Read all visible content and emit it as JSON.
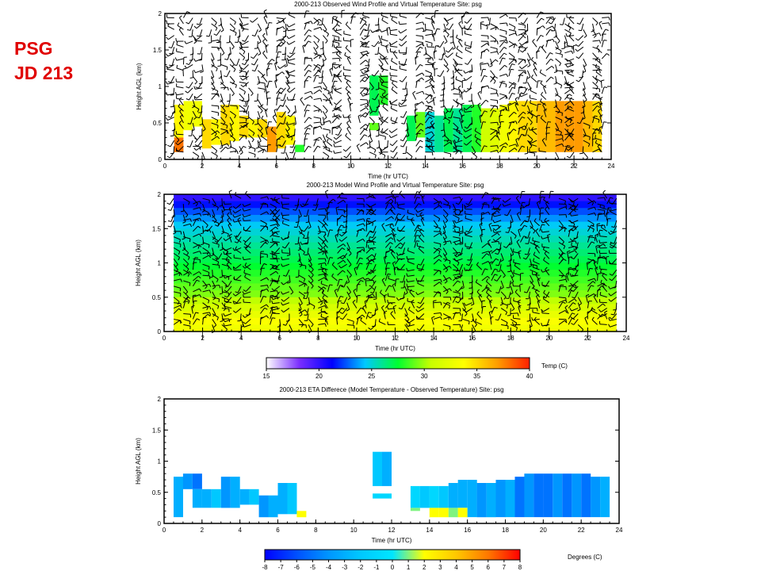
{
  "slide": {
    "title_line1": "PSG",
    "title_line2": "JD 213"
  },
  "colors": {
    "title": "#e00000",
    "frame": "#000000",
    "background": "#ffffff"
  },
  "chart_data": [
    {
      "type": "heatmap",
      "name": "observed",
      "title": "2000-213    Observed Wind Profile and Virtual Temperature    Site: psg",
      "xlabel": "Time (hr UTC)",
      "ylabel": "Height AGL (km)",
      "xlim": [
        0,
        24
      ],
      "ylim": [
        0,
        2
      ],
      "xticks": [
        0,
        2,
        4,
        6,
        8,
        10,
        12,
        14,
        16,
        18,
        20,
        22,
        24
      ],
      "yticks": [
        0,
        0.5,
        1,
        1.5,
        2
      ],
      "ytick_labels": [
        "0",
        "0.5",
        "1",
        "1.5",
        "2"
      ],
      "colorbar": "temperature",
      "wind_barbs": true,
      "cells": [
        {
          "t0": 0.5,
          "t1": 1.0,
          "h0": 0.1,
          "h1": 0.3,
          "v": 38
        },
        {
          "t0": 0.5,
          "t1": 1.0,
          "h0": 0.3,
          "h1": 0.75,
          "v": 34
        },
        {
          "t0": 1.0,
          "t1": 1.5,
          "h0": 0.4,
          "h1": 0.8,
          "v": 33
        },
        {
          "t0": 1.5,
          "t1": 2.0,
          "h0": 0.45,
          "h1": 0.8,
          "v": 33
        },
        {
          "t0": 2.0,
          "t1": 2.5,
          "h0": 0.15,
          "h1": 0.55,
          "v": 35
        },
        {
          "t0": 2.5,
          "t1": 3.0,
          "h0": 0.2,
          "h1": 0.55,
          "v": 34
        },
        {
          "t0": 3.0,
          "t1": 3.5,
          "h0": 0.2,
          "h1": 0.75,
          "v": 35
        },
        {
          "t0": 3.5,
          "t1": 4.0,
          "h0": 0.25,
          "h1": 0.75,
          "v": 34
        },
        {
          "t0": 4.0,
          "t1": 4.5,
          "h0": 0.3,
          "h1": 0.6,
          "v": 35
        },
        {
          "t0": 4.5,
          "t1": 5.0,
          "h0": 0.3,
          "h1": 0.55,
          "v": 34
        },
        {
          "t0": 5.0,
          "t1": 5.5,
          "h0": 0.3,
          "h1": 0.55,
          "v": 35
        },
        {
          "t0": 5.5,
          "t1": 6.0,
          "h0": 0.1,
          "h1": 0.45,
          "v": 37
        },
        {
          "t0": 6.0,
          "t1": 6.5,
          "h0": 0.15,
          "h1": 0.65,
          "v": 35
        },
        {
          "t0": 6.5,
          "t1": 7.0,
          "h0": 0.2,
          "h1": 0.6,
          "v": 34
        },
        {
          "t0": 7.0,
          "t1": 7.5,
          "h0": 0.1,
          "h1": 0.2,
          "v": 28
        },
        {
          "t0": 11.0,
          "t1": 11.5,
          "h0": 0.6,
          "h1": 1.15,
          "v": 27
        },
        {
          "t0": 11.5,
          "t1": 12.0,
          "h0": 0.75,
          "h1": 1.15,
          "v": 28
        },
        {
          "t0": 11.0,
          "t1": 11.5,
          "h0": 0.4,
          "h1": 0.5,
          "v": 29
        },
        {
          "t0": 13.0,
          "t1": 13.5,
          "h0": 0.25,
          "h1": 0.6,
          "v": 27
        },
        {
          "t0": 13.5,
          "t1": 14.0,
          "h0": 0.3,
          "h1": 0.65,
          "v": 29
        },
        {
          "t0": 14.0,
          "t1": 14.5,
          "h0": 0.1,
          "h1": 0.65,
          "v": 25
        },
        {
          "t0": 14.5,
          "t1": 15.0,
          "h0": 0.1,
          "h1": 0.6,
          "v": 26
        },
        {
          "t0": 15.0,
          "t1": 15.5,
          "h0": 0.1,
          "h1": 0.7,
          "v": 27
        },
        {
          "t0": 15.5,
          "t1": 16.0,
          "h0": 0.1,
          "h1": 0.7,
          "v": 26
        },
        {
          "t0": 16.0,
          "t1": 16.5,
          "h0": 0.1,
          "h1": 0.75,
          "v": 27
        },
        {
          "t0": 16.5,
          "t1": 17.0,
          "h0": 0.1,
          "h1": 0.75,
          "v": 28
        },
        {
          "t0": 17.0,
          "t1": 17.5,
          "h0": 0.1,
          "h1": 0.7,
          "v": 31
        },
        {
          "t0": 17.5,
          "t1": 18.0,
          "h0": 0.1,
          "h1": 0.7,
          "v": 32
        },
        {
          "t0": 18.0,
          "t1": 18.5,
          "h0": 0.1,
          "h1": 0.75,
          "v": 33
        },
        {
          "t0": 18.5,
          "t1": 19.0,
          "h0": 0.1,
          "h1": 0.8,
          "v": 34
        },
        {
          "t0": 19.0,
          "t1": 19.5,
          "h0": 0.1,
          "h1": 0.8,
          "v": 35
        },
        {
          "t0": 19.5,
          "t1": 20.0,
          "h0": 0.1,
          "h1": 0.8,
          "v": 35
        },
        {
          "t0": 20.0,
          "t1": 20.5,
          "h0": 0.1,
          "h1": 0.8,
          "v": 36
        },
        {
          "t0": 20.5,
          "t1": 21.0,
          "h0": 0.1,
          "h1": 0.8,
          "v": 36
        },
        {
          "t0": 21.0,
          "t1": 21.5,
          "h0": 0.1,
          "h1": 0.8,
          "v": 37
        },
        {
          "t0": 21.5,
          "t1": 22.0,
          "h0": 0.1,
          "h1": 0.8,
          "v": 37
        },
        {
          "t0": 22.0,
          "t1": 22.5,
          "h0": 0.1,
          "h1": 0.8,
          "v": 37
        },
        {
          "t0": 22.5,
          "t1": 23.0,
          "h0": 0.1,
          "h1": 0.8,
          "v": 36
        },
        {
          "t0": 23.0,
          "t1": 23.5,
          "h0": 0.1,
          "h1": 0.8,
          "v": 35
        }
      ]
    },
    {
      "type": "heatmap",
      "name": "model",
      "title": "2000-213    Model Wind Profile and Virtual Temperature    Site: psg",
      "xlabel": "Time (hr UTC)",
      "ylabel": "Height AGL (km)",
      "xlim": [
        0,
        24
      ],
      "ylim": [
        0,
        2
      ],
      "xticks": [
        0,
        2,
        4,
        6,
        8,
        10,
        12,
        14,
        16,
        18,
        20,
        22,
        24
      ],
      "yticks": [
        0,
        0.5,
        1,
        1.5,
        2
      ],
      "ytick_labels": [
        "0",
        "0.5",
        "1",
        "1.5",
        "2"
      ],
      "colorbar": "temperature",
      "wind_barbs": true,
      "field": {
        "t0": 0.5,
        "t1": 23.5,
        "levels_km": [
          2.0,
          1.9,
          1.8,
          1.7,
          1.6,
          1.5,
          1.4,
          1.3,
          1.2,
          1.1,
          1.0,
          0.9,
          0.8,
          0.7,
          0.6,
          0.5,
          0.4,
          0.3,
          0.2,
          0.1,
          0.0
        ],
        "temps_c": [
          20,
          21.5,
          22.5,
          23.5,
          24.5,
          25,
          25.5,
          26,
          26.5,
          27,
          27.5,
          28,
          28.5,
          29,
          29.5,
          30.5,
          31.5,
          32.5,
          33.5,
          33
        ]
      }
    },
    {
      "type": "colorbar",
      "name": "temperature-scale",
      "label": "Temp (C)",
      "range": [
        15,
        40
      ],
      "ticks": [
        15,
        20,
        25,
        30,
        35,
        40
      ],
      "stops": [
        "#ffffff",
        "#7b2fff",
        "#0000ff",
        "#00c8ff",
        "#00ff30",
        "#c8ff00",
        "#ffff00",
        "#ffa000",
        "#ff2000"
      ]
    },
    {
      "type": "heatmap",
      "name": "difference",
      "title": "2000-213    ETA    Differece (Model Temperature - Observed Temperature)    Site: psg",
      "xlabel": "Time (hr UTC)",
      "ylabel": "Height AGL (km)",
      "xlim": [
        0,
        24
      ],
      "ylim": [
        0,
        2
      ],
      "xticks": [
        0,
        2,
        4,
        6,
        8,
        10,
        12,
        14,
        16,
        18,
        20,
        22,
        24
      ],
      "yticks": [
        0,
        0.5,
        1,
        1.5,
        2
      ],
      "ytick_labels": [
        "0",
        "0.5",
        "1",
        "1.5",
        "2"
      ],
      "colorbar": "difference",
      "wind_barbs": false,
      "cells": [
        {
          "t0": 0.5,
          "t1": 1.0,
          "h0": 0.1,
          "h1": 0.75,
          "v": -3
        },
        {
          "t0": 1.0,
          "t1": 1.5,
          "h0": 0.55,
          "h1": 0.8,
          "v": -4
        },
        {
          "t0": 1.5,
          "t1": 2.0,
          "h0": 0.55,
          "h1": 0.8,
          "v": -5
        },
        {
          "t0": 1.5,
          "t1": 2.0,
          "h0": 0.25,
          "h1": 0.55,
          "v": -3
        },
        {
          "t0": 2.0,
          "t1": 2.5,
          "h0": 0.25,
          "h1": 0.55,
          "v": -3
        },
        {
          "t0": 2.5,
          "t1": 3.0,
          "h0": 0.25,
          "h1": 0.55,
          "v": -2
        },
        {
          "t0": 3.0,
          "t1": 3.5,
          "h0": 0.25,
          "h1": 0.75,
          "v": -4
        },
        {
          "t0": 3.5,
          "t1": 4.0,
          "h0": 0.25,
          "h1": 0.75,
          "v": -3
        },
        {
          "t0": 4.0,
          "t1": 4.5,
          "h0": 0.3,
          "h1": 0.55,
          "v": -3
        },
        {
          "t0": 4.5,
          "t1": 5.0,
          "h0": 0.3,
          "h1": 0.55,
          "v": -2
        },
        {
          "t0": 5.0,
          "t1": 5.5,
          "h0": 0.1,
          "h1": 0.45,
          "v": -4
        },
        {
          "t0": 5.5,
          "t1": 6.0,
          "h0": 0.1,
          "h1": 0.45,
          "v": -3
        },
        {
          "t0": 6.0,
          "t1": 6.5,
          "h0": 0.15,
          "h1": 0.65,
          "v": -3
        },
        {
          "t0": 6.5,
          "t1": 7.0,
          "h0": 0.15,
          "h1": 0.65,
          "v": -2
        },
        {
          "t0": 7.0,
          "t1": 7.5,
          "h0": 0.1,
          "h1": 0.2,
          "v": 2
        },
        {
          "t0": 11.0,
          "t1": 11.5,
          "h0": 0.6,
          "h1": 1.15,
          "v": -2
        },
        {
          "t0": 11.5,
          "t1": 12.0,
          "h0": 0.6,
          "h1": 1.15,
          "v": -3
        },
        {
          "t0": 11.0,
          "t1": 12.0,
          "h0": 0.4,
          "h1": 0.48,
          "v": -1
        },
        {
          "t0": 13.0,
          "t1": 13.5,
          "h0": 0.25,
          "h1": 0.6,
          "v": -1
        },
        {
          "t0": 13.0,
          "t1": 13.5,
          "h0": 0.2,
          "h1": 0.25,
          "v": 1
        },
        {
          "t0": 13.5,
          "t1": 14.0,
          "h0": 0.25,
          "h1": 0.6,
          "v": -2
        },
        {
          "t0": 14.0,
          "t1": 14.5,
          "h0": 0.25,
          "h1": 0.6,
          "v": -1
        },
        {
          "t0": 14.0,
          "t1": 14.5,
          "h0": 0.1,
          "h1": 0.25,
          "v": 2
        },
        {
          "t0": 14.5,
          "t1": 15.0,
          "h0": 0.25,
          "h1": 0.6,
          "v": -2
        },
        {
          "t0": 14.5,
          "t1": 15.0,
          "h0": 0.1,
          "h1": 0.25,
          "v": 2
        },
        {
          "t0": 15.0,
          "t1": 15.5,
          "h0": 0.25,
          "h1": 0.65,
          "v": -3
        },
        {
          "t0": 15.0,
          "t1": 15.5,
          "h0": 0.1,
          "h1": 0.25,
          "v": 1
        },
        {
          "t0": 15.5,
          "t1": 16.0,
          "h0": 0.25,
          "h1": 0.7,
          "v": -3
        },
        {
          "t0": 15.5,
          "t1": 16.0,
          "h0": 0.1,
          "h1": 0.25,
          "v": 2
        },
        {
          "t0": 16.0,
          "t1": 16.5,
          "h0": 0.1,
          "h1": 0.7,
          "v": -3
        },
        {
          "t0": 16.5,
          "t1": 17.0,
          "h0": 0.1,
          "h1": 0.65,
          "v": -4
        },
        {
          "t0": 17.0,
          "t1": 17.5,
          "h0": 0.1,
          "h1": 0.65,
          "v": -3
        },
        {
          "t0": 17.5,
          "t1": 18.0,
          "h0": 0.1,
          "h1": 0.7,
          "v": -4
        },
        {
          "t0": 18.0,
          "t1": 18.5,
          "h0": 0.1,
          "h1": 0.7,
          "v": -3
        },
        {
          "t0": 18.5,
          "t1": 19.0,
          "h0": 0.1,
          "h1": 0.75,
          "v": -5
        },
        {
          "t0": 19.0,
          "t1": 19.5,
          "h0": 0.1,
          "h1": 0.8,
          "v": -4
        },
        {
          "t0": 19.5,
          "t1": 20.0,
          "h0": 0.1,
          "h1": 0.8,
          "v": -5
        },
        {
          "t0": 20.0,
          "t1": 20.5,
          "h0": 0.1,
          "h1": 0.8,
          "v": -5
        },
        {
          "t0": 20.5,
          "t1": 21.0,
          "h0": 0.1,
          "h1": 0.8,
          "v": -4
        },
        {
          "t0": 21.0,
          "t1": 21.5,
          "h0": 0.1,
          "h1": 0.8,
          "v": -5
        },
        {
          "t0": 21.5,
          "t1": 22.0,
          "h0": 0.1,
          "h1": 0.8,
          "v": -4
        },
        {
          "t0": 22.0,
          "t1": 22.5,
          "h0": 0.1,
          "h1": 0.8,
          "v": -5
        },
        {
          "t0": 22.5,
          "t1": 23.0,
          "h0": 0.1,
          "h1": 0.75,
          "v": -4
        },
        {
          "t0": 23.0,
          "t1": 23.5,
          "h0": 0.1,
          "h1": 0.75,
          "v": -3
        }
      ]
    },
    {
      "type": "colorbar",
      "name": "difference-scale",
      "label": "Degrees (C)",
      "range": [
        -8,
        8
      ],
      "ticks": [
        -8,
        -7,
        -6,
        -5,
        -4,
        -3,
        -2,
        -1,
        0,
        1,
        2,
        3,
        4,
        5,
        6,
        7,
        8
      ],
      "stops": [
        "#0000ff",
        "#0050ff",
        "#0096ff",
        "#00c8ff",
        "#00e6ff",
        "#ffff00",
        "#ffc800",
        "#ff7800",
        "#ff0000"
      ]
    }
  ]
}
